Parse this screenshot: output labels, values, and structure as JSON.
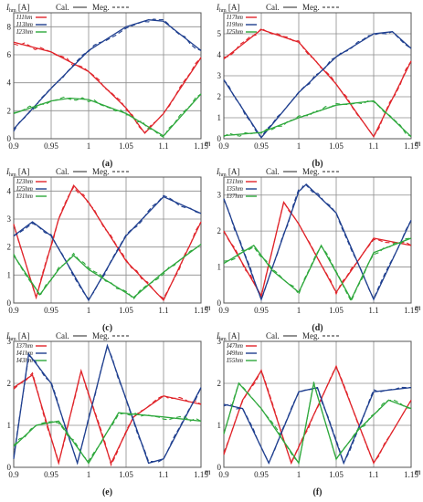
{
  "figure": {
    "colors": {
      "red": "#e0242a",
      "blue": "#1f3f8f",
      "green": "#2ea83c",
      "grid": "#8c8c8c"
    },
    "y_label": "I",
    "y_unit": "[A]",
    "cal_label": "Cal.",
    "meg_label": "Meg."
  },
  "chart_data": [
    {
      "type": "line",
      "panel_label": "(a)",
      "xlabel": "m",
      "ylabel_sub": "hm",
      "xlim": [
        0.9,
        1.15
      ],
      "ylim": [
        0,
        9
      ],
      "xticks": [
        "0.9",
        "0.95",
        "1",
        "1.05",
        "1.1",
        "1.15"
      ],
      "yticks": [
        "0",
        "2",
        "4",
        "6",
        "8"
      ],
      "legend": [
        "I11hm",
        "I13hm",
        "I23hm"
      ],
      "series": [
        {
          "name": "I11hm",
          "color": "red",
          "x": [
            0.9,
            0.95,
            1.0,
            1.05,
            1.075,
            1.1,
            1.15
          ],
          "values": [
            6.9,
            6.2,
            4.8,
            2.2,
            0.4,
            1.8,
            5.8
          ]
        },
        {
          "name": "I13hm",
          "color": "blue",
          "x": [
            0.9,
            0.95,
            1.0,
            1.05,
            1.08,
            1.1,
            1.15
          ],
          "values": [
            0.7,
            3.6,
            6.3,
            8.0,
            8.5,
            8.4,
            6.3
          ]
        },
        {
          "name": "I23hm",
          "color": "green",
          "x": [
            0.9,
            0.95,
            0.975,
            1.0,
            1.05,
            1.1,
            1.15
          ],
          "values": [
            1.8,
            2.7,
            2.9,
            2.8,
            1.8,
            0.2,
            3.2
          ]
        }
      ]
    },
    {
      "type": "line",
      "panel_label": "(b)",
      "xlabel": "m",
      "ylabel_sub": "hm",
      "xlim": [
        0.9,
        1.15
      ],
      "ylim": [
        0,
        6
      ],
      "xticks": [
        "0.9",
        "0.95",
        "1",
        "1.05",
        "1.1",
        "1.15"
      ],
      "yticks": [
        "0",
        "1",
        "2",
        "3",
        "4",
        "5"
      ],
      "legend": [
        "I17hm",
        "I19hm",
        "I25hm"
      ],
      "series": [
        {
          "name": "I17hm",
          "color": "red",
          "x": [
            0.9,
            0.95,
            1.0,
            1.05,
            1.1,
            1.15
          ],
          "values": [
            3.8,
            5.2,
            4.6,
            2.6,
            0.1,
            3.7
          ]
        },
        {
          "name": "I19hm",
          "color": "blue",
          "x": [
            0.9,
            0.95,
            1.0,
            1.05,
            1.1,
            1.125,
            1.15
          ],
          "values": [
            2.8,
            0.05,
            2.2,
            3.9,
            5.0,
            5.1,
            4.3
          ]
        },
        {
          "name": "I25hm",
          "color": "green",
          "x": [
            0.9,
            0.95,
            1.0,
            1.05,
            1.1,
            1.15
          ],
          "values": [
            0.15,
            0.3,
            1.0,
            1.6,
            1.8,
            0.1
          ]
        }
      ]
    },
    {
      "type": "line",
      "panel_label": "(c)",
      "xlabel": "m",
      "ylabel_sub": "hm",
      "xlim": [
        0.9,
        1.15
      ],
      "ylim": [
        0,
        4.5
      ],
      "xticks": [
        "0.9",
        "0.95",
        "1",
        "1.05",
        "1.1",
        "1.15"
      ],
      "yticks": [
        "0",
        "1",
        "2",
        "3",
        "4"
      ],
      "legend": [
        "I23hm",
        "I25hm",
        "I31hm"
      ],
      "series": [
        {
          "name": "I23hm",
          "color": "red",
          "x": [
            0.9,
            0.93,
            0.96,
            0.98,
            1.0,
            1.05,
            1.1,
            1.15
          ],
          "values": [
            2.8,
            0.2,
            3.0,
            4.2,
            3.6,
            1.5,
            0.1,
            2.9
          ]
        },
        {
          "name": "I25hm",
          "color": "blue",
          "x": [
            0.9,
            0.925,
            0.95,
            1.0,
            1.05,
            1.1,
            1.15
          ],
          "values": [
            2.4,
            2.9,
            2.4,
            0.1,
            2.4,
            3.8,
            3.2
          ]
        },
        {
          "name": "I31hm",
          "color": "green",
          "x": [
            0.9,
            0.935,
            0.96,
            0.98,
            1.0,
            1.06,
            1.1,
            1.15
          ],
          "values": [
            1.7,
            0.3,
            1.2,
            1.7,
            1.2,
            0.2,
            1.1,
            2.1
          ]
        }
      ]
    },
    {
      "type": "line",
      "panel_label": "(d)",
      "xlabel": "m",
      "ylabel_sub": "hm",
      "xlim": [
        0.9,
        1.15
      ],
      "ylim": [
        0,
        3.5
      ],
      "xticks": [
        "0.9",
        "0.95",
        "1",
        "1.05",
        "1.1",
        "1.15"
      ],
      "yticks": [
        "0",
        "1",
        "2",
        "3"
      ],
      "legend": [
        "I31hm",
        "I35hm",
        "I37hm"
      ],
      "series": [
        {
          "name": "I31hm",
          "color": "red",
          "x": [
            0.9,
            0.95,
            0.98,
            1.0,
            1.05,
            1.1,
            1.15
          ],
          "values": [
            2.0,
            0.2,
            2.8,
            2.2,
            0.3,
            1.8,
            1.6
          ]
        },
        {
          "name": "I35hm",
          "color": "blue",
          "x": [
            0.9,
            0.95,
            1.0,
            1.01,
            1.05,
            1.1,
            1.15
          ],
          "values": [
            2.9,
            0.1,
            3.1,
            3.3,
            2.5,
            0.1,
            2.3
          ]
        },
        {
          "name": "I37hm",
          "color": "green",
          "x": [
            0.9,
            0.94,
            0.965,
            1.0,
            1.03,
            1.07,
            1.1,
            1.15
          ],
          "values": [
            1.1,
            1.6,
            0.9,
            0.3,
            1.6,
            0.1,
            1.4,
            1.8
          ]
        }
      ]
    },
    {
      "type": "line",
      "panel_label": "(e)",
      "xlabel": "m",
      "ylabel_sub": "hm",
      "xlim": [
        0.9,
        1.15
      ],
      "ylim": [
        0,
        3
      ],
      "xticks": [
        "0.9",
        "0.95",
        "1",
        "1.05",
        "1.1",
        "1.15"
      ],
      "yticks": [
        "0",
        "1",
        "2",
        "3"
      ],
      "legend": [
        "I37hm",
        "I41hm",
        "I43hm"
      ],
      "series": [
        {
          "name": "I37hm",
          "color": "red",
          "x": [
            0.9,
            0.925,
            0.96,
            0.99,
            1.03,
            1.06,
            1.1,
            1.15
          ],
          "values": [
            1.9,
            2.2,
            0.1,
            2.3,
            0.1,
            1.2,
            1.7,
            1.5
          ]
        },
        {
          "name": "I41hm",
          "color": "blue",
          "x": [
            0.9,
            0.92,
            0.95,
            0.985,
            1.025,
            1.08,
            1.1,
            1.15
          ],
          "values": [
            0.2,
            2.7,
            2.0,
            0.1,
            2.9,
            0.1,
            0.2,
            1.9
          ]
        },
        {
          "name": "I43hm",
          "color": "green",
          "x": [
            0.9,
            0.93,
            0.96,
            0.98,
            1.0,
            1.04,
            1.1,
            1.15
          ],
          "values": [
            0.5,
            1.0,
            1.1,
            0.6,
            0.1,
            1.3,
            1.2,
            1.1
          ]
        }
      ]
    },
    {
      "type": "line",
      "panel_label": "(f)",
      "xlabel": "m",
      "ylabel_sub": "hm",
      "xlim": [
        0.9,
        1.15
      ],
      "ylim": [
        0,
        3
      ],
      "xticks": [
        "0.9",
        "0.95",
        "1",
        "1.05",
        "1.1",
        "1.15"
      ],
      "yticks": [
        "0",
        "1",
        "2",
        "3"
      ],
      "legend": [
        "I47hm",
        "I49hm",
        "I55hm"
      ],
      "series": [
        {
          "name": "I47hm",
          "color": "red",
          "x": [
            0.9,
            0.925,
            0.95,
            0.99,
            1.05,
            1.1,
            1.15
          ],
          "values": [
            0.3,
            1.6,
            2.3,
            0.1,
            2.4,
            0.1,
            1.6
          ]
        },
        {
          "name": "I49hm",
          "color": "blue",
          "x": [
            0.9,
            0.925,
            0.96,
            1.0,
            1.025,
            1.06,
            1.1,
            1.15
          ],
          "values": [
            1.5,
            1.4,
            0.1,
            1.8,
            1.9,
            0.1,
            1.8,
            1.9
          ]
        },
        {
          "name": "I55hm",
          "color": "green",
          "x": [
            0.9,
            0.92,
            0.95,
            1.0,
            1.02,
            1.05,
            1.08,
            1.12,
            1.15
          ],
          "values": [
            0.8,
            2.0,
            1.4,
            0.1,
            2.0,
            0.2,
            0.9,
            1.6,
            1.4
          ]
        }
      ]
    }
  ]
}
